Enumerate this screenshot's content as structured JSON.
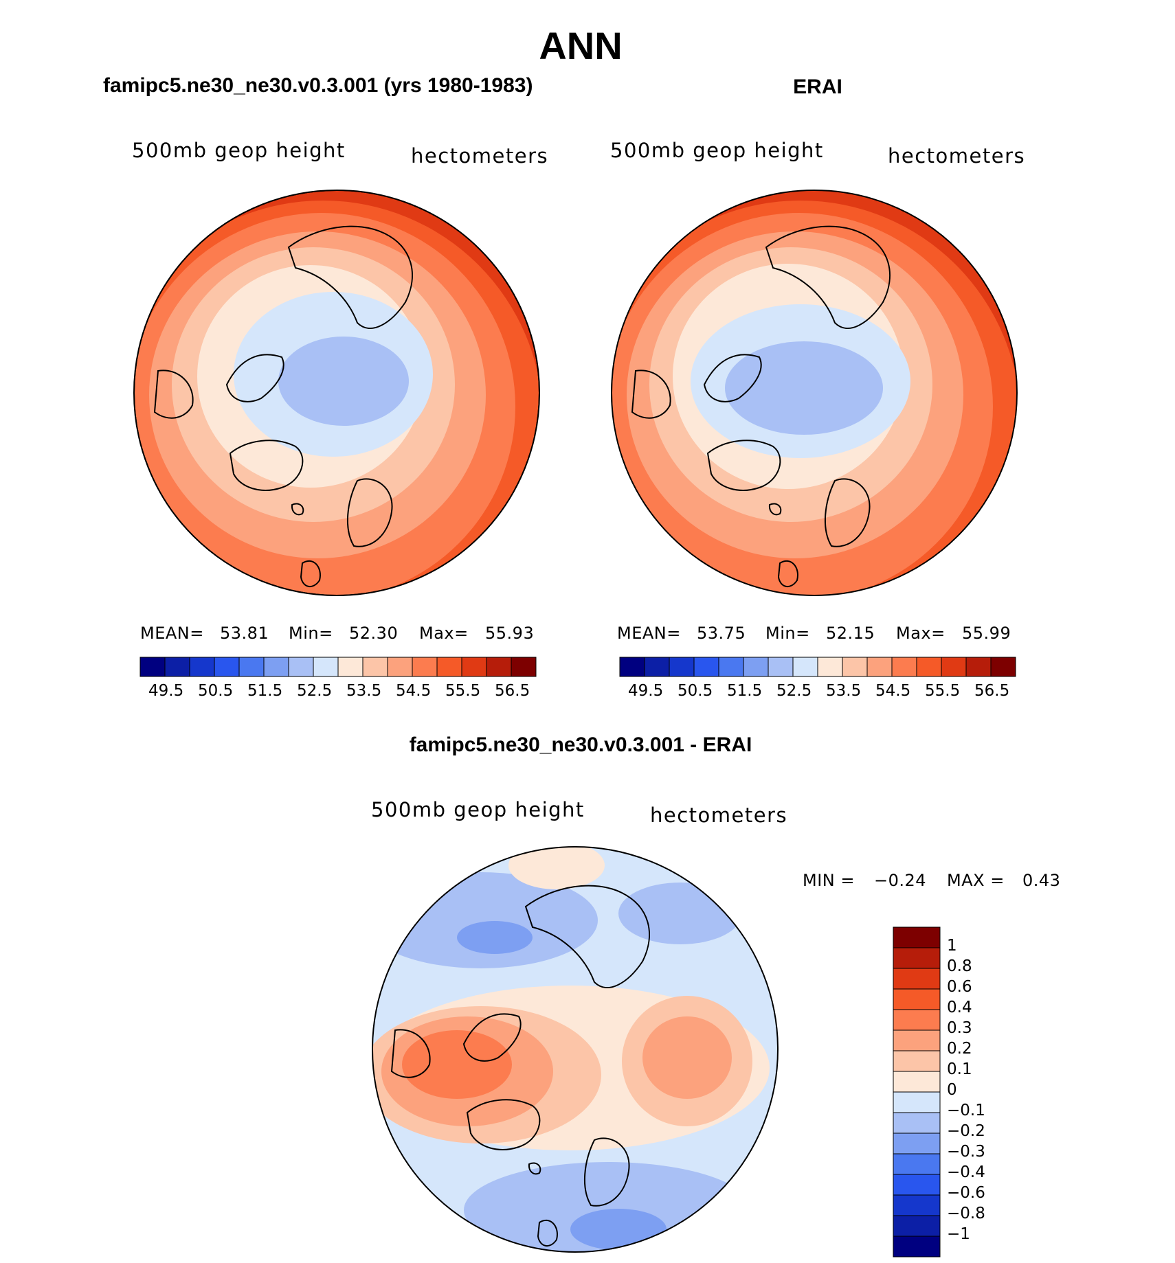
{
  "title": "ANN",
  "panels": {
    "left": {
      "title": "famipc5.ne30_ne30.v0.3.001 (yrs 1980-1983)",
      "variable": "500mb geop height",
      "units": "hectometers",
      "stats": {
        "mean_label": "MEAN=",
        "mean": "53.81",
        "min_label": "Min=",
        "min": "52.30",
        "max_label": "Max=",
        "max": "55.93"
      }
    },
    "right": {
      "title": "ERAI",
      "variable": "500mb geop height",
      "units": "hectometers",
      "stats": {
        "mean_label": "MEAN=",
        "mean": "53.75",
        "min_label": "Min=",
        "min": "52.15",
        "max_label": "Max=",
        "max": "55.99"
      }
    },
    "diff": {
      "title": "famipc5.ne30_ne30.v0.3.001 - ERAI",
      "variable": "500mb geop height",
      "units": "hectometers",
      "stats": {
        "min_label": "MIN =",
        "min": "−0.24",
        "max_label": "MAX =",
        "max": "0.43"
      }
    }
  },
  "colorbars": {
    "field": {
      "colors": [
        "#000080",
        "#0c1fa6",
        "#1537cc",
        "#2956ee",
        "#4a78f0",
        "#7d9ff2",
        "#a9c0f5",
        "#d5e6fb",
        "#fde8d8",
        "#fcc5a8",
        "#fca27d",
        "#fc7c4f",
        "#f55a28",
        "#e03a14",
        "#b61d0a",
        "#7d0000"
      ],
      "tick_labels": [
        "49.5",
        "50.5",
        "51.5",
        "52.5",
        "53.5",
        "54.5",
        "55.5",
        "56.5"
      ]
    },
    "diff": {
      "colors": [
        "#7d0000",
        "#b61d0a",
        "#e03a14",
        "#f55a28",
        "#fc7c4f",
        "#fca27d",
        "#fcc5a8",
        "#fde8d8",
        "#d5e6fb",
        "#a9c0f5",
        "#7d9ff2",
        "#4a78f0",
        "#2956ee",
        "#1537cc",
        "#0c1fa6",
        "#000080"
      ],
      "tick_labels": [
        "1",
        "0.8",
        "0.6",
        "0.4",
        "0.3",
        "0.2",
        "0.1",
        "0",
        "−0.1",
        "−0.2",
        "−0.3",
        "−0.4",
        "−0.6",
        "−0.8",
        "−1"
      ]
    }
  },
  "chart_data": [
    {
      "type": "heatmap",
      "title": "famipc5.ne30_ne30.v0.3.001 (yrs 1980-1983)",
      "variable": "500mb geop height",
      "units": "hectometers",
      "projection": "north polar stereographic",
      "mean": 53.81,
      "min": 52.3,
      "max": 55.93,
      "contour_levels": [
        49.5,
        50.0,
        50.5,
        51.0,
        51.5,
        52.0,
        52.5,
        53.0,
        53.5,
        54.0,
        54.5,
        55.0,
        55.5,
        56.0,
        56.5
      ]
    },
    {
      "type": "heatmap",
      "title": "ERAI",
      "variable": "500mb geop height",
      "units": "hectometers",
      "projection": "north polar stereographic",
      "mean": 53.75,
      "min": 52.15,
      "max": 55.99,
      "contour_levels": [
        49.5,
        50.0,
        50.5,
        51.0,
        51.5,
        52.0,
        52.5,
        53.0,
        53.5,
        54.0,
        54.5,
        55.0,
        55.5,
        56.0,
        56.5
      ]
    },
    {
      "type": "heatmap",
      "title": "famipc5.ne30_ne30.v0.3.001 - ERAI",
      "variable": "500mb geop height",
      "units": "hectometers",
      "projection": "north polar stereographic",
      "min": -0.24,
      "max": 0.43,
      "contour_levels": [
        -1,
        -0.8,
        -0.6,
        -0.4,
        -0.3,
        -0.2,
        -0.1,
        0,
        0.1,
        0.2,
        0.3,
        0.4,
        0.6,
        0.8,
        1
      ]
    }
  ]
}
